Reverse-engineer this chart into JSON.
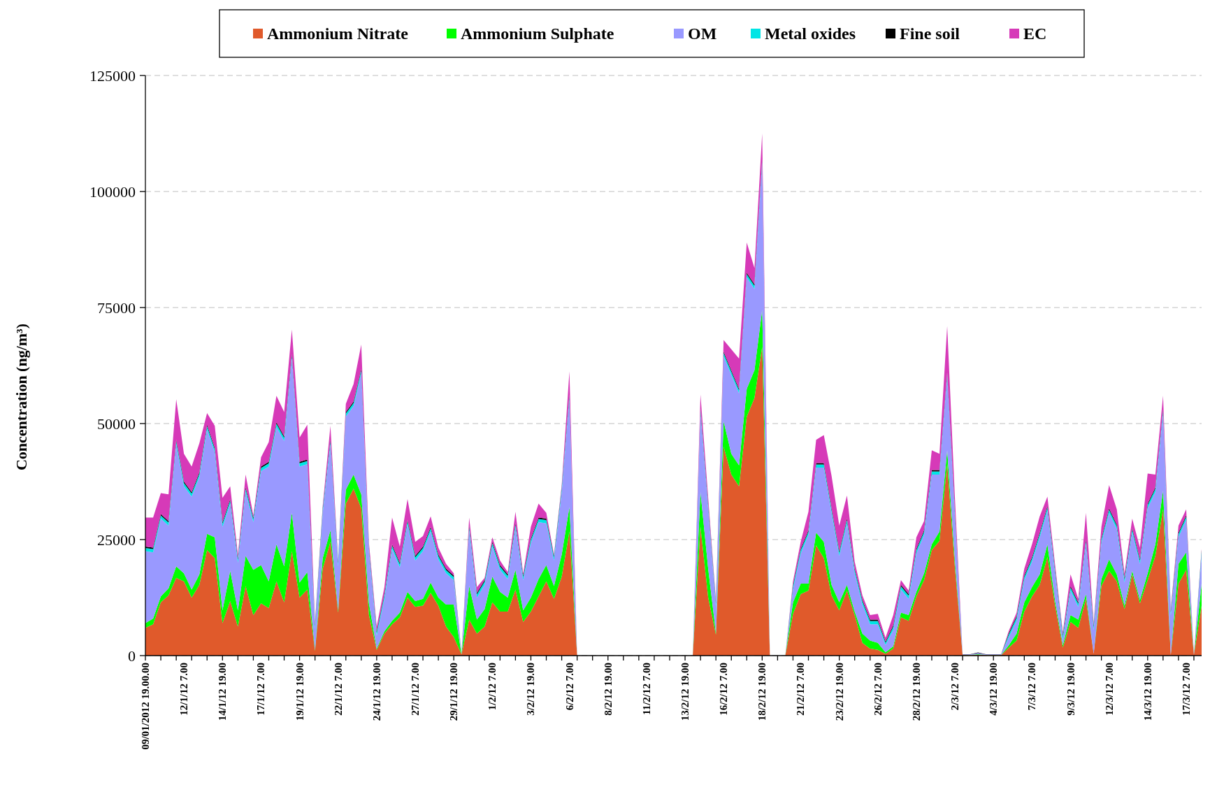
{
  "chart_data": {
    "type": "area",
    "stacked": true,
    "ylabel": "Concentration (ng/m³)",
    "ylim": [
      0,
      125000
    ],
    "yticks": [
      0,
      25000,
      50000,
      75000,
      100000,
      125000
    ],
    "grid": "y",
    "legend": "top",
    "categories": [
      "09/01/2012 19.00.00",
      null,
      null,
      null,
      null,
      "12/1/12 7.00",
      null,
      null,
      null,
      null,
      "14/1/12 19.00",
      null,
      null,
      null,
      null,
      "17/1/12 7.00",
      null,
      null,
      null,
      null,
      "19/1/12 19.00",
      null,
      null,
      null,
      null,
      "22/1/12 7.00",
      null,
      null,
      null,
      null,
      "24/1/12 19.00",
      null,
      null,
      null,
      null,
      "27/1/12 7.00",
      null,
      null,
      null,
      null,
      "29/1/12 19.00",
      null,
      null,
      null,
      null,
      "1/2/12 7.00",
      null,
      null,
      null,
      null,
      "3/2/12 19.00",
      null,
      null,
      null,
      null,
      "6/2/12 7.00",
      null,
      null,
      null,
      null,
      "8/2/12 19.00",
      null,
      null,
      null,
      null,
      "11/2/12 7.00",
      null,
      null,
      null,
      null,
      "13/2/12 19.00",
      null,
      null,
      null,
      null,
      "16/2/12 7.00",
      null,
      null,
      null,
      null,
      "18/2/12 19.00",
      null,
      null,
      null,
      null,
      "21/2/12 7.00",
      null,
      null,
      null,
      null,
      "23/2/12 19.00",
      null,
      null,
      null,
      null,
      "26/2/12 7.00",
      null,
      null,
      null,
      null,
      "28/2/12 19.00",
      null,
      null,
      null,
      null,
      "2/3/12 7.00",
      null,
      null,
      null,
      null,
      "4/3/12 19.00",
      null,
      null,
      null,
      null,
      "7/3/12 7.00",
      null,
      null,
      null,
      null,
      "9/3/12 19.00",
      null,
      null,
      null,
      null,
      "12/3/12 7.00",
      null,
      null,
      null,
      null,
      "14/3/12 19.00",
      null,
      null,
      null,
      null,
      "17/3/12 7.00",
      null,
      null
    ],
    "series": [
      {
        "name": "Ammonium Nitrate",
        "color": "#e05a2b",
        "values": [
          6000,
          6750,
          11500,
          13000,
          16750,
          16000,
          12500,
          15250,
          22750,
          21000,
          7000,
          11750,
          6250,
          15000,
          8750,
          11250,
          10250,
          16000,
          11500,
          22500,
          12500,
          14250,
          1000,
          18750,
          24500,
          9250,
          32750,
          36000,
          31750,
          8750,
          1250,
          4750,
          6750,
          8250,
          12500,
          10500,
          10750,
          13500,
          10750,
          6250,
          4000,
          300,
          7750,
          4750,
          6250,
          11500,
          9500,
          9500,
          14250,
          7250,
          9500,
          12750,
          16000,
          12250,
          17000,
          26750,
          0,
          0,
          0,
          0,
          0,
          0,
          0,
          0,
          0,
          0,
          0,
          0,
          0,
          0,
          0,
          0,
          27750,
          12500,
          4500,
          45000,
          39000,
          36500,
          51500,
          55500,
          66500,
          0,
          0,
          0,
          9000,
          13250,
          14000,
          23750,
          21000,
          13000,
          9750,
          14000,
          8750,
          2750,
          1500,
          1250,
          400,
          1500,
          8250,
          7500,
          12750,
          16250,
          22750,
          24750,
          41250,
          19000,
          100,
          100,
          200,
          100,
          100,
          100,
          1750,
          3250,
          9500,
          12750,
          15250,
          21250,
          10750,
          1750,
          7250,
          6000,
          12250,
          400,
          15000,
          18250,
          16000,
          10000,
          17500,
          11250,
          16250,
          21500,
          31500,
          150,
          15500,
          18500,
          150,
          10750
        ]
      },
      {
        "name": "Ammonium Sulphate",
        "color": "#00ff00",
        "values": [
          1000,
          1250,
          1250,
          1500,
          2500,
          1750,
          1750,
          2250,
          3500,
          4500,
          2750,
          6500,
          3500,
          6500,
          9750,
          8250,
          5750,
          8000,
          7750,
          8250,
          3250,
          3750,
          250,
          2250,
          2500,
          500,
          3000,
          3000,
          3000,
          2500,
          250,
          500,
          750,
          1000,
          1250,
          1250,
          1500,
          2250,
          1750,
          4750,
          7000,
          50,
          7250,
          3000,
          3750,
          5500,
          4250,
          3000,
          4250,
          2500,
          3000,
          3750,
          3500,
          2750,
          4750,
          5250,
          0,
          0,
          0,
          0,
          0,
          0,
          0,
          0,
          0,
          0,
          0,
          0,
          0,
          0,
          0,
          0,
          7500,
          6200,
          400,
          5500,
          4500,
          4500,
          6000,
          6000,
          8000,
          0,
          0,
          0,
          2500,
          2250,
          1500,
          2750,
          3500,
          2250,
          1750,
          1250,
          750,
          2000,
          1750,
          1500,
          300,
          500,
          1000,
          1250,
          1000,
          1500,
          1250,
          2000,
          3000,
          1500,
          50,
          50,
          100,
          50,
          50,
          50,
          500,
          1500,
          2000,
          2000,
          2250,
          2750,
          1000,
          500,
          1500,
          1750,
          1000,
          0,
          1500,
          2500,
          1500,
          750,
          750,
          750,
          1500,
          2500,
          4000,
          0,
          4250,
          3750,
          0,
          4750
        ]
      },
      {
        "name": "OM",
        "color": "#9999ff",
        "values": [
          15500,
          14250,
          16750,
          13500,
          26250,
          18750,
          20000,
          21000,
          22500,
          18250,
          18000,
          14500,
          10250,
          13750,
          10250,
          20250,
          24750,
          25250,
          27000,
          33250,
          25000,
          23250,
          4500,
          9750,
          18500,
          9500,
          15750,
          14750,
          26000,
          11000,
          2750,
          7000,
          15500,
          9750,
          14500,
          8750,
          10250,
          11000,
          8250,
          6750,
          5250,
          100,
          12000,
          4750,
          5250,
          6500,
          4750,
          4000,
          9000,
          6500,
          11750,
          12250,
          9000,
          5500,
          13500,
          23250,
          0,
          0,
          0,
          0,
          0,
          0,
          0,
          0,
          0,
          0,
          0,
          0,
          0,
          0,
          0,
          0,
          17000,
          12800,
          5600,
          14000,
          17000,
          15500,
          24000,
          17500,
          31500,
          0,
          0,
          0,
          2700,
          6500,
          10500,
          14000,
          16000,
          15500,
          10000,
          13250,
          8250,
          6250,
          3500,
          4000,
          1600,
          3500,
          5000,
          3500,
          8250,
          8250,
          15000,
          12250,
          15750,
          9500,
          100,
          100,
          250,
          100,
          100,
          100,
          1750,
          2750,
          4750,
          5500,
          8000,
          7250,
          5750,
          1250,
          5250,
          2750,
          10750,
          5100,
          7750,
          10000,
          9750,
          5000,
          8250,
          7750,
          14000,
          11250,
          16500,
          8500,
          5750,
          7000,
          0,
          6250
        ]
      },
      {
        "name": "Metal oxides",
        "color": "#00e5e5",
        "values": [
          700,
          700,
          700,
          700,
          700,
          700,
          700,
          700,
          700,
          700,
          700,
          700,
          700,
          700,
          700,
          700,
          700,
          700,
          700,
          700,
          700,
          700,
          700,
          700,
          700,
          700,
          700,
          700,
          700,
          700,
          700,
          700,
          700,
          700,
          700,
          700,
          700,
          700,
          700,
          700,
          700,
          50,
          700,
          700,
          700,
          700,
          700,
          700,
          700,
          700,
          700,
          700,
          700,
          700,
          700,
          700,
          0,
          0,
          0,
          0,
          0,
          0,
          0,
          0,
          0,
          0,
          0,
          0,
          0,
          0,
          0,
          0,
          700,
          700,
          700,
          700,
          700,
          700,
          700,
          700,
          700,
          0,
          0,
          0,
          700,
          700,
          700,
          700,
          700,
          700,
          700,
          700,
          700,
          700,
          700,
          700,
          500,
          700,
          700,
          700,
          700,
          700,
          700,
          700,
          700,
          700,
          20,
          20,
          30,
          20,
          20,
          20,
          600,
          700,
          700,
          700,
          700,
          700,
          700,
          700,
          700,
          700,
          700,
          700,
          700,
          700,
          700,
          700,
          700,
          700,
          700,
          700,
          700,
          700,
          700,
          700,
          0,
          700
        ]
      },
      {
        "name": "Fine soil",
        "color": "#000000",
        "values": [
          300,
          300,
          300,
          300,
          300,
          300,
          300,
          300,
          300,
          300,
          300,
          300,
          300,
          300,
          300,
          300,
          300,
          300,
          300,
          300,
          300,
          300,
          300,
          300,
          300,
          300,
          300,
          300,
          300,
          300,
          300,
          300,
          300,
          300,
          300,
          300,
          300,
          300,
          300,
          300,
          300,
          20,
          300,
          300,
          300,
          300,
          300,
          300,
          300,
          300,
          300,
          300,
          300,
          300,
          300,
          300,
          0,
          0,
          0,
          0,
          0,
          0,
          0,
          0,
          0,
          0,
          0,
          0,
          0,
          0,
          0,
          0,
          300,
          300,
          300,
          300,
          300,
          300,
          300,
          300,
          300,
          0,
          0,
          0,
          300,
          300,
          300,
          300,
          300,
          300,
          300,
          300,
          300,
          300,
          300,
          300,
          250,
          300,
          300,
          300,
          300,
          300,
          300,
          300,
          300,
          300,
          50,
          50,
          100,
          50,
          50,
          50,
          300,
          300,
          300,
          300,
          300,
          300,
          300,
          300,
          300,
          300,
          300,
          300,
          300,
          300,
          300,
          300,
          300,
          300,
          300,
          300,
          300,
          300,
          300,
          300,
          0,
          300
        ]
      },
      {
        "name": "EC",
        "color": "#d63ab8",
        "values": [
          6250,
          6500,
          4500,
          5750,
          8750,
          6000,
          5500,
          6250,
          2500,
          4750,
          5250,
          2750,
          750,
          2750,
          500,
          2000,
          4250,
          5750,
          5250,
          5250,
          5250,
          7500,
          500,
          500,
          3000,
          250,
          1750,
          3750,
          5250,
          1000,
          1000,
          1500,
          5750,
          3500,
          4500,
          3000,
          2250,
          2250,
          1500,
          1000,
          500,
          30,
          1750,
          1250,
          500,
          1000,
          1000,
          500,
          2500,
          500,
          2500,
          3000,
          1250,
          250,
          500,
          5000,
          0,
          0,
          0,
          0,
          0,
          0,
          0,
          0,
          0,
          0,
          0,
          0,
          0,
          0,
          0,
          0,
          3000,
          1500,
          400,
          2500,
          4500,
          6500,
          6500,
          3500,
          5500,
          0,
          0,
          0,
          800,
          1500,
          4000,
          5000,
          6000,
          7000,
          5500,
          5000,
          1500,
          1000,
          1000,
          1250,
          800,
          2250,
          1000,
          750,
          2500,
          2000,
          4250,
          3500,
          10000,
          3000,
          0,
          0,
          0,
          0,
          0,
          0,
          500,
          750,
          1500,
          2750,
          3500,
          2000,
          1000,
          500,
          2500,
          750,
          5750,
          500,
          2500,
          5000,
          3250,
          1000,
          2000,
          2500,
          6500,
          2750,
          3000,
          500,
          1500,
          1250,
          250,
          250
        ]
      }
    ]
  }
}
